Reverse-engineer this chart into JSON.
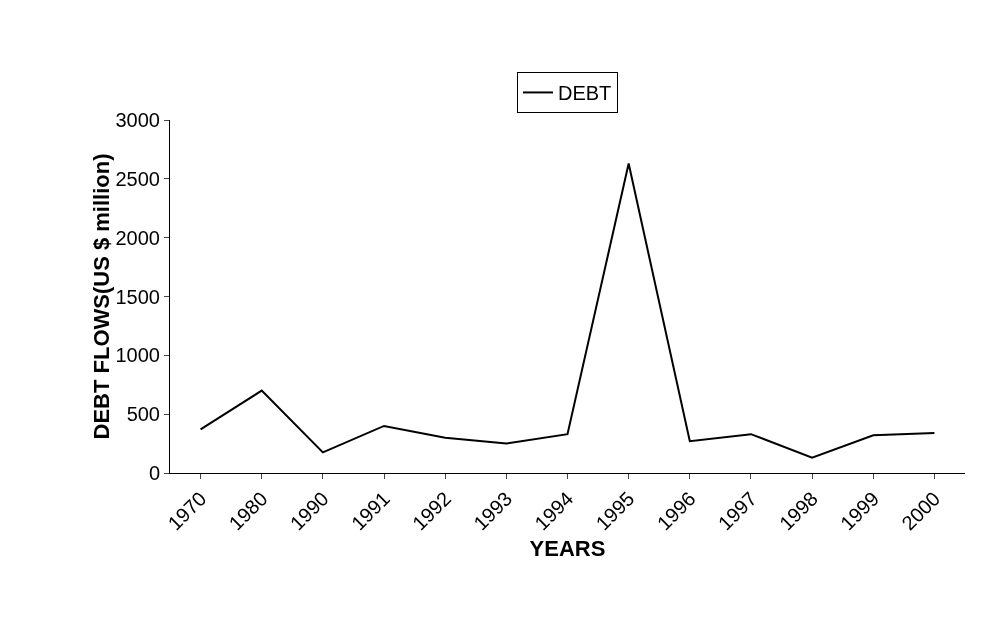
{
  "chart_data": {
    "type": "line",
    "xlabel": "YEARS",
    "ylabel": "DEBT FLOWS(US $ million)",
    "categories": [
      "1970",
      "1980",
      "1990",
      "1991",
      "1992",
      "1993",
      "1994",
      "1995",
      "1996",
      "1997",
      "1998",
      "1999",
      "2000"
    ],
    "series": [
      {
        "name": "DEBT",
        "color": "#000000",
        "values": [
          370,
          700,
          175,
          400,
          300,
          250,
          330,
          2630,
          270,
          330,
          130,
          320,
          340
        ]
      }
    ],
    "ylim": [
      0,
      3000
    ],
    "yticks": [
      0,
      500,
      1000,
      1500,
      2000,
      2500,
      3000
    ],
    "grid": false,
    "legend": "top",
    "marker": "none",
    "line_style": "solid"
  }
}
